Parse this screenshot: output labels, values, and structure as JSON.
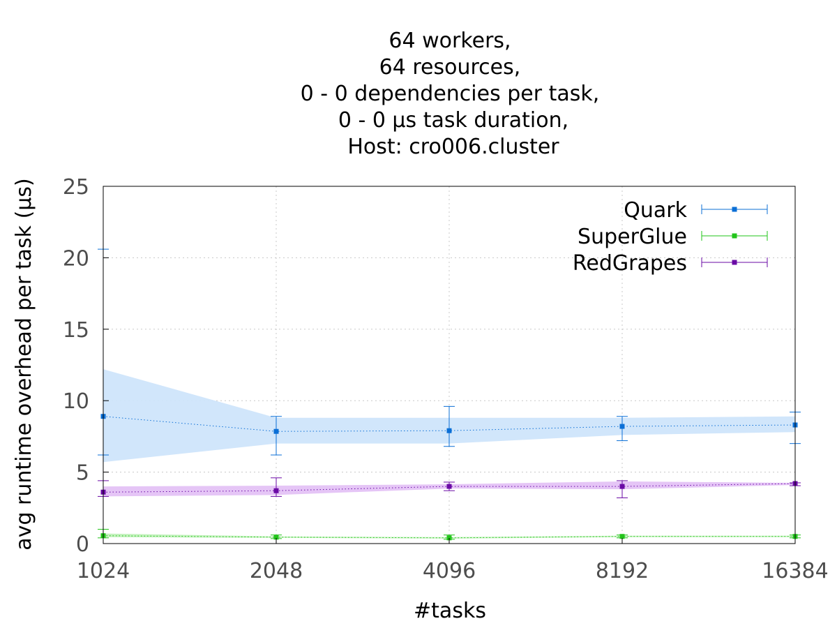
{
  "chart_data": {
    "type": "line",
    "title_lines": [
      "64 workers,",
      "64 resources,",
      "0 - 0 dependencies per task,",
      "0 - 0 µs task duration,",
      "Host: cro006.cluster"
    ],
    "xlabel": "#tasks",
    "ylabel": "avg runtime overhead per task (µs)",
    "categories": [
      "1024",
      "2048",
      "4096",
      "8192",
      "16384"
    ],
    "y_ticks": [
      "0",
      "5",
      "10",
      "15",
      "20",
      "25"
    ],
    "ylim": [
      0,
      25
    ],
    "grid": true,
    "legend_position": "top-right",
    "series": [
      {
        "name": "Quark",
        "color": "#0b6fd6",
        "band_color": "#cfe5fb",
        "values": [
          8.9,
          7.85,
          7.9,
          8.2,
          8.3
        ],
        "band_low": [
          5.7,
          7.0,
          7.0,
          7.6,
          7.8
        ],
        "band_high": [
          12.2,
          8.8,
          8.8,
          8.8,
          8.9
        ],
        "err_low": [
          6.2,
          6.2,
          6.8,
          7.2,
          7.0
        ],
        "err_high": [
          20.6,
          8.9,
          9.6,
          8.9,
          9.2
        ]
      },
      {
        "name": "SuperGlue",
        "color": "#22c41a",
        "band_color": "#bff0b8",
        "values": [
          0.55,
          0.45,
          0.4,
          0.5,
          0.5
        ],
        "band_low": [
          0.45,
          0.4,
          0.35,
          0.45,
          0.45
        ],
        "band_high": [
          0.7,
          0.5,
          0.45,
          0.55,
          0.55
        ],
        "err_low": [
          0.4,
          0.35,
          0.3,
          0.4,
          0.4
        ],
        "err_high": [
          1.0,
          0.6,
          0.6,
          0.6,
          0.6
        ]
      },
      {
        "name": "RedGrapes",
        "color": "#6a0aa5",
        "band_color": "#e4c2f5",
        "values": [
          3.6,
          3.7,
          4.0,
          4.0,
          4.2
        ],
        "band_low": [
          3.3,
          3.4,
          3.85,
          3.8,
          4.1
        ],
        "band_high": [
          4.0,
          4.05,
          4.15,
          4.35,
          4.25
        ],
        "err_low": [
          3.3,
          3.3,
          3.7,
          3.2,
          4.05
        ],
        "err_high": [
          4.4,
          4.6,
          4.3,
          4.4,
          4.25
        ]
      }
    ]
  }
}
